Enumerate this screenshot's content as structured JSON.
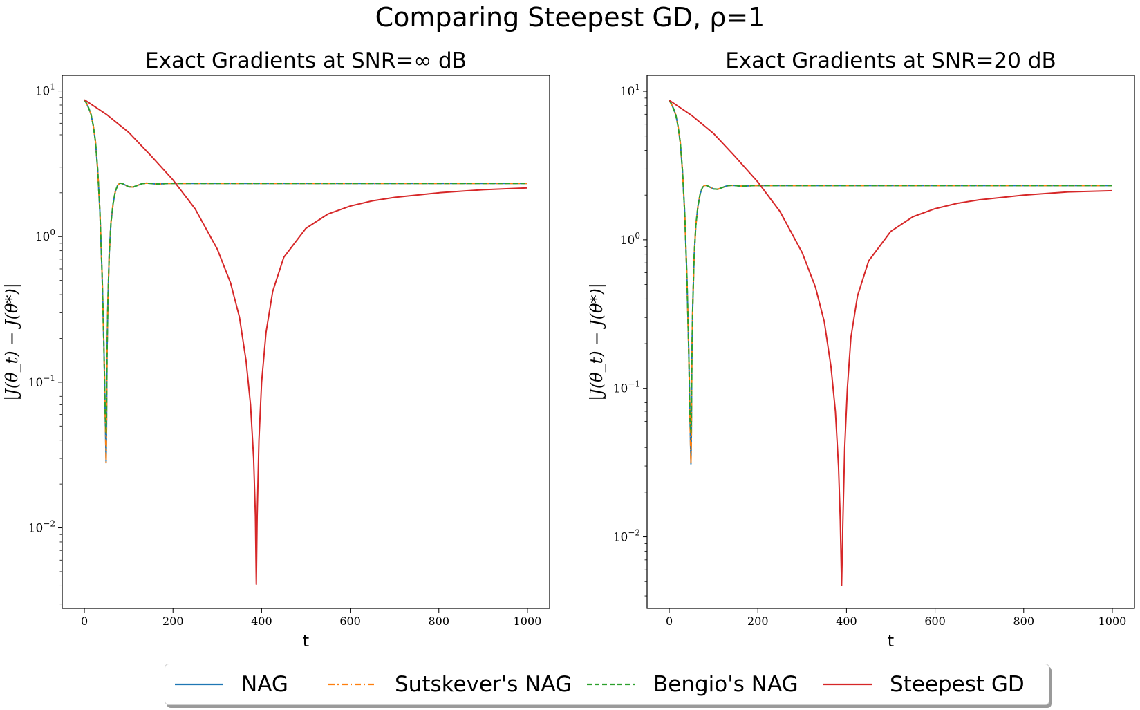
{
  "figure": {
    "title": "Comparing Steepest GD, ρ=1"
  },
  "colors": {
    "NAG": "#1f77b4",
    "Sutskever's NAG": "#ff7f0e",
    "Bengio's NAG": "#2ca02c",
    "Steepest GD": "#d62728"
  },
  "legend": [
    {
      "label": "NAG",
      "style": "solid"
    },
    {
      "label": "Sutskever's NAG",
      "style": "dashdot"
    },
    {
      "label": "Bengio's NAG",
      "style": "dashed"
    },
    {
      "label": "Steepest GD",
      "style": "solid"
    }
  ],
  "chart_data": [
    {
      "type": "line",
      "title": "Exact Gradients at SNR=∞ dB",
      "xlabel": "t",
      "ylabel": "|J(θ_t) − J(θ*)|",
      "yscale": "log",
      "xlim": [
        -50,
        1050
      ],
      "ylim": [
        0.0028,
        12.8
      ],
      "xticks": [
        0,
        200,
        400,
        600,
        800,
        1000
      ],
      "yticks": [
        0.01,
        0.1,
        1,
        10
      ],
      "ytick_labels": [
        {
          "base": "10",
          "exp": "−2"
        },
        {
          "base": "10",
          "exp": "−1"
        },
        {
          "base": "10",
          "exp": "0"
        },
        {
          "base": "10",
          "exp": "1"
        }
      ],
      "grid": false,
      "series": [
        {
          "name": "NAG",
          "x": [
            0,
            5,
            10,
            15,
            20,
            25,
            30,
            35,
            40,
            44,
            47,
            49,
            50,
            51,
            53,
            56,
            60,
            65,
            70,
            75,
            80,
            85,
            90,
            100,
            110,
            120,
            130,
            140,
            150,
            160,
            170,
            180,
            190,
            200,
            220,
            250,
            300,
            400,
            500,
            600,
            700,
            800,
            900,
            1000
          ],
          "y": [
            8.7,
            8.2,
            7.6,
            6.9,
            5.8,
            4.5,
            2.9,
            1.5,
            0.55,
            0.18,
            0.06,
            0.028,
            0.05,
            0.15,
            0.35,
            0.75,
            1.25,
            1.7,
            2.05,
            2.25,
            2.33,
            2.32,
            2.28,
            2.2,
            2.19,
            2.25,
            2.31,
            2.33,
            2.32,
            2.3,
            2.3,
            2.31,
            2.32,
            2.32,
            2.32,
            2.32,
            2.32,
            2.32,
            2.32,
            2.32,
            2.32,
            2.32,
            2.32,
            2.32
          ]
        },
        {
          "name": "Sutskever's NAG",
          "x": [
            0,
            5,
            10,
            15,
            20,
            25,
            30,
            35,
            40,
            44,
            47,
            49,
            50,
            51,
            53,
            56,
            60,
            65,
            70,
            75,
            80,
            85,
            90,
            100,
            110,
            120,
            130,
            140,
            150,
            160,
            170,
            180,
            190,
            200,
            220,
            250,
            300,
            400,
            500,
            600,
            700,
            800,
            900,
            1000
          ],
          "y": [
            8.7,
            8.2,
            7.6,
            6.9,
            5.8,
            4.5,
            2.9,
            1.5,
            0.55,
            0.18,
            0.06,
            0.028,
            0.05,
            0.15,
            0.35,
            0.75,
            1.25,
            1.7,
            2.05,
            2.25,
            2.33,
            2.32,
            2.28,
            2.2,
            2.19,
            2.25,
            2.31,
            2.33,
            2.32,
            2.3,
            2.3,
            2.31,
            2.32,
            2.32,
            2.32,
            2.32,
            2.32,
            2.32,
            2.32,
            2.32,
            2.32,
            2.32,
            2.32,
            2.32
          ]
        },
        {
          "name": "Bengio's NAG",
          "x": [
            0,
            5,
            10,
            15,
            20,
            25,
            30,
            35,
            40,
            44,
            47,
            49,
            50,
            51,
            53,
            56,
            60,
            65,
            70,
            75,
            80,
            85,
            90,
            100,
            110,
            120,
            130,
            140,
            150,
            160,
            170,
            180,
            190,
            200,
            220,
            250,
            300,
            400,
            500,
            600,
            700,
            800,
            900,
            1000
          ],
          "y": [
            8.7,
            8.2,
            7.6,
            6.9,
            5.8,
            4.5,
            2.9,
            1.5,
            0.55,
            0.18,
            0.06,
            0.045,
            0.06,
            0.15,
            0.35,
            0.75,
            1.25,
            1.7,
            2.05,
            2.25,
            2.33,
            2.32,
            2.28,
            2.2,
            2.19,
            2.25,
            2.31,
            2.33,
            2.32,
            2.3,
            2.3,
            2.31,
            2.32,
            2.32,
            2.32,
            2.32,
            2.32,
            2.32,
            2.32,
            2.32,
            2.32,
            2.32,
            2.32,
            2.32
          ]
        },
        {
          "name": "Steepest GD",
          "x": [
            0,
            50,
            100,
            150,
            200,
            250,
            300,
            330,
            350,
            365,
            375,
            382,
            386,
            388,
            390,
            394,
            400,
            410,
            425,
            450,
            500,
            550,
            600,
            650,
            700,
            800,
            900,
            1000
          ],
          "y": [
            8.7,
            6.9,
            5.2,
            3.6,
            2.45,
            1.55,
            0.82,
            0.48,
            0.28,
            0.14,
            0.07,
            0.03,
            0.012,
            0.0041,
            0.012,
            0.04,
            0.1,
            0.22,
            0.42,
            0.72,
            1.14,
            1.43,
            1.62,
            1.76,
            1.86,
            2.0,
            2.1,
            2.16
          ]
        }
      ]
    },
    {
      "type": "line",
      "title": "Exact Gradients at SNR=20 dB",
      "xlabel": "t",
      "ylabel": "|J(θ_t) − J(θ*)|",
      "yscale": "log",
      "xlim": [
        -50,
        1050
      ],
      "ylim": [
        0.0033,
        12.8
      ],
      "xticks": [
        0,
        200,
        400,
        600,
        800,
        1000
      ],
      "yticks": [
        0.01,
        0.1,
        1,
        10
      ],
      "ytick_labels": [
        {
          "base": "10",
          "exp": "−2"
        },
        {
          "base": "10",
          "exp": "−1"
        },
        {
          "base": "10",
          "exp": "0"
        },
        {
          "base": "10",
          "exp": "1"
        }
      ],
      "grid": false,
      "series": [
        {
          "name": "NAG",
          "x": [
            0,
            5,
            10,
            15,
            20,
            25,
            30,
            35,
            40,
            44,
            47,
            49,
            50,
            51,
            53,
            56,
            60,
            65,
            70,
            75,
            80,
            85,
            90,
            100,
            110,
            120,
            130,
            140,
            150,
            160,
            170,
            180,
            190,
            200,
            220,
            250,
            300,
            400,
            500,
            600,
            700,
            800,
            900,
            1000
          ],
          "y": [
            8.7,
            8.2,
            7.6,
            6.9,
            5.8,
            4.5,
            2.9,
            1.5,
            0.55,
            0.18,
            0.06,
            0.031,
            0.05,
            0.15,
            0.35,
            0.75,
            1.25,
            1.7,
            2.05,
            2.25,
            2.33,
            2.32,
            2.28,
            2.2,
            2.19,
            2.25,
            2.31,
            2.33,
            2.32,
            2.3,
            2.3,
            2.31,
            2.32,
            2.32,
            2.32,
            2.32,
            2.32,
            2.32,
            2.32,
            2.32,
            2.32,
            2.32,
            2.32,
            2.32
          ]
        },
        {
          "name": "Sutskever's NAG",
          "x": [
            0,
            5,
            10,
            15,
            20,
            25,
            30,
            35,
            40,
            44,
            47,
            49,
            50,
            51,
            53,
            56,
            60,
            65,
            70,
            75,
            80,
            85,
            90,
            100,
            110,
            120,
            130,
            140,
            150,
            160,
            170,
            180,
            190,
            200,
            220,
            250,
            300,
            400,
            500,
            600,
            700,
            800,
            900,
            1000
          ],
          "y": [
            8.7,
            8.2,
            7.6,
            6.9,
            5.8,
            4.5,
            2.9,
            1.5,
            0.55,
            0.18,
            0.06,
            0.031,
            0.05,
            0.15,
            0.35,
            0.75,
            1.25,
            1.7,
            2.05,
            2.25,
            2.33,
            2.32,
            2.28,
            2.2,
            2.19,
            2.25,
            2.31,
            2.33,
            2.32,
            2.3,
            2.3,
            2.31,
            2.32,
            2.32,
            2.32,
            2.32,
            2.32,
            2.32,
            2.32,
            2.32,
            2.32,
            2.32,
            2.32,
            2.32
          ]
        },
        {
          "name": "Bengio's NAG",
          "x": [
            0,
            5,
            10,
            15,
            20,
            25,
            30,
            35,
            40,
            44,
            47,
            49,
            50,
            51,
            53,
            56,
            60,
            65,
            70,
            75,
            80,
            85,
            90,
            100,
            110,
            120,
            130,
            140,
            150,
            160,
            170,
            180,
            190,
            200,
            220,
            250,
            300,
            400,
            500,
            600,
            700,
            800,
            900,
            1000
          ],
          "y": [
            8.7,
            8.2,
            7.6,
            6.9,
            5.8,
            4.5,
            2.9,
            1.5,
            0.55,
            0.18,
            0.06,
            0.05,
            0.06,
            0.15,
            0.35,
            0.75,
            1.25,
            1.7,
            2.05,
            2.25,
            2.33,
            2.32,
            2.28,
            2.2,
            2.19,
            2.25,
            2.31,
            2.33,
            2.32,
            2.3,
            2.3,
            2.31,
            2.32,
            2.32,
            2.32,
            2.32,
            2.32,
            2.32,
            2.32,
            2.32,
            2.32,
            2.32,
            2.32,
            2.32
          ]
        },
        {
          "name": "Steepest GD",
          "x": [
            0,
            50,
            100,
            150,
            200,
            250,
            300,
            330,
            350,
            365,
            375,
            382,
            386,
            389,
            392,
            396,
            402,
            410,
            425,
            450,
            500,
            550,
            600,
            650,
            700,
            800,
            900,
            1000
          ],
          "y": [
            8.7,
            6.9,
            5.2,
            3.6,
            2.45,
            1.55,
            0.82,
            0.48,
            0.28,
            0.14,
            0.07,
            0.03,
            0.013,
            0.0047,
            0.013,
            0.04,
            0.1,
            0.22,
            0.42,
            0.72,
            1.14,
            1.43,
            1.62,
            1.76,
            1.86,
            2.0,
            2.1,
            2.14
          ]
        }
      ]
    }
  ]
}
